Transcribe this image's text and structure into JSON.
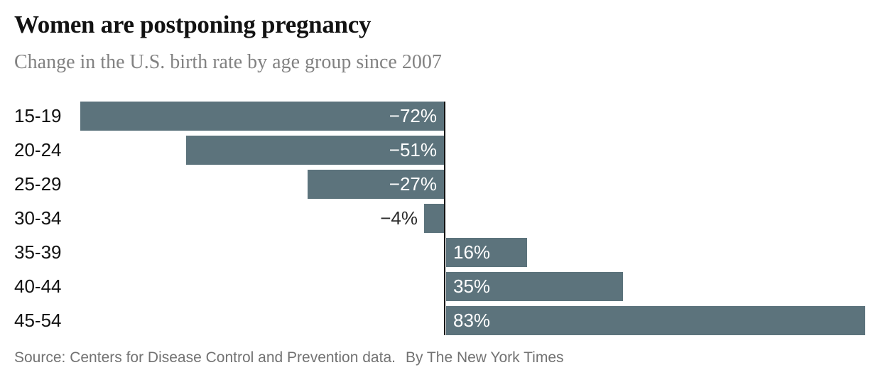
{
  "header": {
    "title": "Women are postponing pregnancy",
    "subtitle": "Change in the U.S. birth rate by age group since 2007"
  },
  "chart_data": {
    "type": "bar",
    "orientation": "horizontal",
    "title": "Women are postponing pregnancy",
    "subtitle": "Change in the U.S. birth rate by age group since 2007",
    "categories": [
      "15-19",
      "20-24",
      "25-29",
      "30-34",
      "35-39",
      "40-44",
      "45-54"
    ],
    "values": [
      -72,
      -51,
      -27,
      -4,
      16,
      35,
      83
    ],
    "value_labels": [
      "−72%",
      "−51%",
      "−27%",
      "−4%",
      "16%",
      "35%",
      "83%"
    ],
    "xlabel": "",
    "ylabel": "",
    "xlim": [
      -88,
      86
    ],
    "grid": false,
    "legend_position": "none",
    "colors": {
      "bar": "#5c737c",
      "axis_line": "#121212",
      "label_inside_bar": "#ffffff",
      "label_outside_bar": "#2b2b2b",
      "title": "#121212",
      "subtitle": "#828282",
      "source": "#727272"
    }
  },
  "footer": {
    "source": "Source: Centers for Disease Control and Prevention data.",
    "byline": "By The New York Times"
  }
}
